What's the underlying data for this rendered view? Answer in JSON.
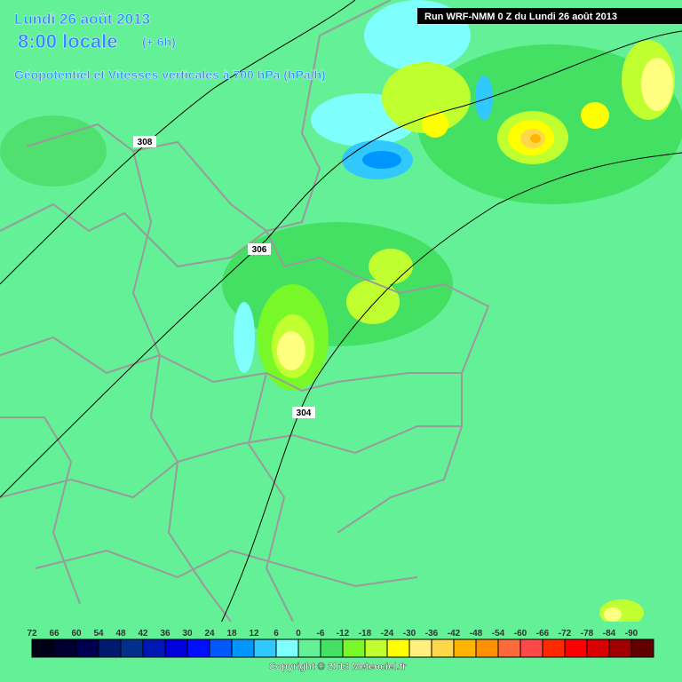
{
  "header": {
    "date": "Lundi 26 août 2013",
    "time": "8:00 locale",
    "offset": "(+ 6h)",
    "subtitle": "Géopotentiel et Vitesses verticales à 700 hPa (hPa/h)",
    "run": "Run WRF-NMM 0 Z du Lundi 26 août 2013"
  },
  "contours": [
    {
      "label": "308"
    },
    {
      "label": "306"
    },
    {
      "label": "304"
    }
  ],
  "legend": {
    "items": [
      {
        "value": 72,
        "color": "#000018"
      },
      {
        "value": 66,
        "color": "#000030"
      },
      {
        "value": 60,
        "color": "#000050"
      },
      {
        "value": 54,
        "color": "#001a6e"
      },
      {
        "value": 48,
        "color": "#00308c"
      },
      {
        "value": 42,
        "color": "#0018b4"
      },
      {
        "value": 36,
        "color": "#0000dc"
      },
      {
        "value": 30,
        "color": "#0010ff"
      },
      {
        "value": 24,
        "color": "#0058ff"
      },
      {
        "value": 18,
        "color": "#0096ff"
      },
      {
        "value": 12,
        "color": "#30c8ff"
      },
      {
        "value": 6,
        "color": "#80ffff"
      },
      {
        "value": 0,
        "color": "#64f096"
      },
      {
        "value": -6,
        "color": "#44e064"
      },
      {
        "value": -12,
        "color": "#78f828"
      },
      {
        "value": -18,
        "color": "#c0ff30"
      },
      {
        "value": -24,
        "color": "#ffff00"
      },
      {
        "value": -30,
        "color": "#fff080"
      },
      {
        "value": -36,
        "color": "#ffd84a"
      },
      {
        "value": -42,
        "color": "#ffb400"
      },
      {
        "value": -48,
        "color": "#ff9000"
      },
      {
        "value": -54,
        "color": "#ff6a3c"
      },
      {
        "value": -60,
        "color": "#ff4848"
      },
      {
        "value": -66,
        "color": "#ff2a00"
      },
      {
        "value": -72,
        "color": "#ff0000"
      },
      {
        "value": -78,
        "color": "#d80000"
      },
      {
        "value": -84,
        "color": "#a00000"
      },
      {
        "value": -90,
        "color": "#600000"
      }
    ]
  },
  "footer": {
    "copyright": "Copyright © 2013 Meteociel.fr"
  }
}
